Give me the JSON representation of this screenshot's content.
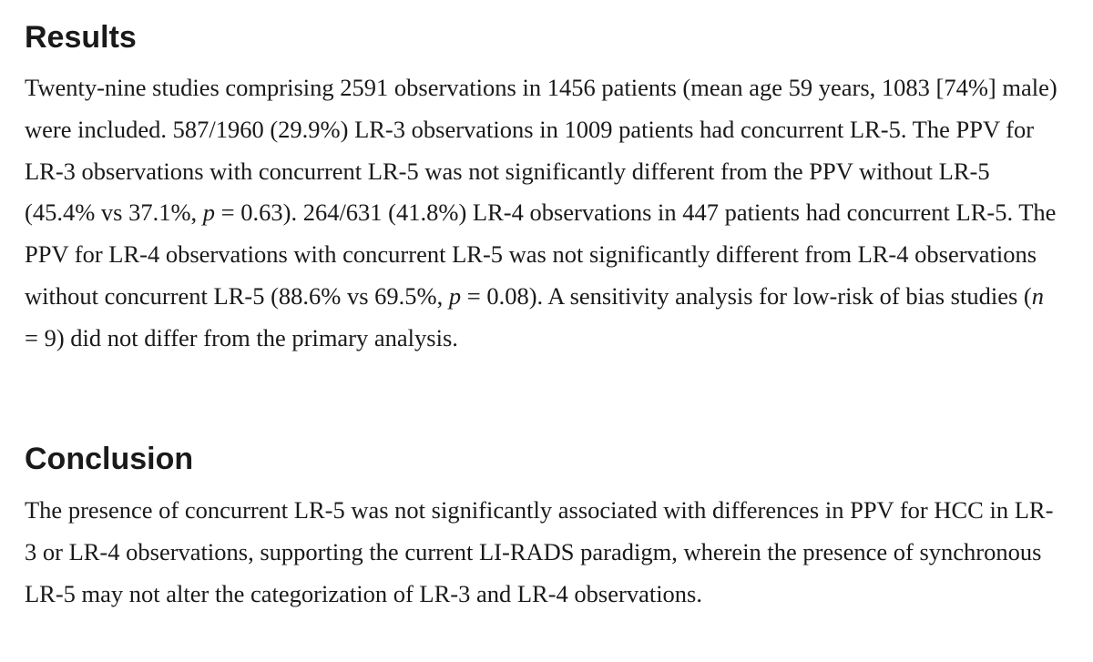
{
  "results": {
    "heading": "Results",
    "s1": "Twenty-nine studies comprising 2591 observations in 1456 patients (mean age 59 years, 1083 [74%] male) were included. 587/1960 (29.9%) LR-3 observations in 1009 patients had concurrent LR-5. The PPV for LR-3 observations with concurrent LR-5 was not significantly different from the PPV without LR-5 (45.4% vs 37.1%, ",
    "p1_var": "p",
    "s2": " = 0.63). 264/631 (41.8%) LR-4 observations in 447 patients had concurrent LR-5. The PPV for LR-4 observations with concurrent LR-5 was not significantly different from LR-4 observations without concurrent LR-5 (88.6% vs 69.5%, ",
    "p2_var": "p",
    "s3": " = 0.08). A sensitivity analysis for low-risk of bias studies (",
    "n_var": "n",
    "s4": " = 9) did not differ from the primary analysis."
  },
  "conclusion": {
    "heading": "Conclusion",
    "text": "The presence of concurrent LR-5 was not significantly associated with differences in PPV for HCC in LR-3 or LR-4 observations, supporting the current LI-RADS paradigm, wherein the presence of synchronous LR-5 may not alter the categorization of LR-3 and LR-4 observations."
  }
}
